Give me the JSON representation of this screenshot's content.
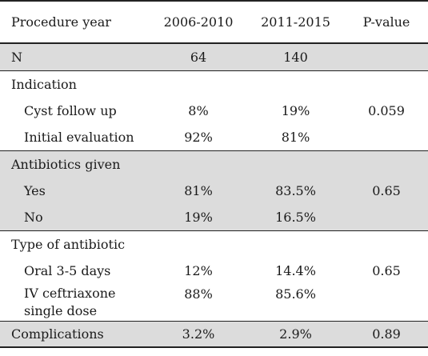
{
  "headers": [
    "Procedure year",
    "2006-2010",
    "2011-2015",
    "P-value"
  ],
  "rows": [
    {
      "label": "N",
      "c1": "64",
      "c2": "140",
      "p": ""
    },
    {
      "label": "Indication",
      "c1": "",
      "c2": "",
      "p": ""
    },
    {
      "label": "Cyst follow up",
      "c1": "8%",
      "c2": "19%",
      "p": "0.059"
    },
    {
      "label": "Initial evaluation",
      "c1": "92%",
      "c2": "81%",
      "p": ""
    },
    {
      "label": "Antibiotics given",
      "c1": "",
      "c2": "",
      "p": ""
    },
    {
      "label": "Yes",
      "c1": "81%",
      "c2": "83.5%",
      "p": "0.65"
    },
    {
      "label": "No",
      "c1": "19%",
      "c2": "16.5%",
      "p": ""
    },
    {
      "label": "Type of antibiotic",
      "c1": "",
      "c2": "",
      "p": ""
    },
    {
      "label": "Oral 3-5 days",
      "c1": "12%",
      "c2": "14.4%",
      "p": "0.65"
    },
    {
      "label": "IV ceftriaxone single dose",
      "c1": "88%",
      "c2": "85.6%",
      "p": ""
    },
    {
      "label": "Complications",
      "c1": "3.2%",
      "c2": "2.9%",
      "p": "0.89"
    }
  ]
}
